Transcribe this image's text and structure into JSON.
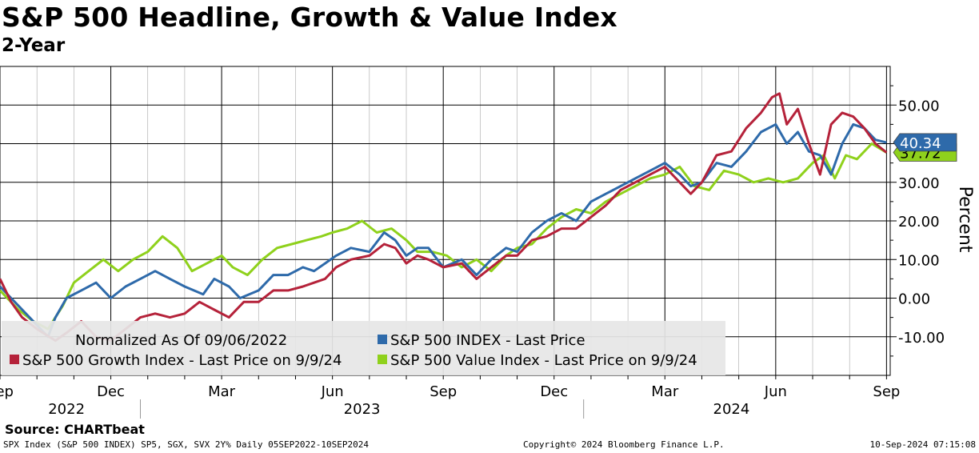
{
  "chart_data": {
    "type": "line",
    "title": "S&P 500 Headline, Growth & Value Index",
    "subtitle": "2-Year",
    "ylabel": "Percent",
    "ylim": [
      -20,
      60
    ],
    "yticks": [
      -10,
      0,
      10,
      20,
      30,
      40,
      50
    ],
    "ytick_labels": [
      "-10.00",
      "0.00",
      "10.00",
      "20.00",
      "30.00",
      "40.00",
      "50.00"
    ],
    "xlim": [
      0,
      24.1
    ],
    "xticks": [
      0,
      3,
      6,
      9,
      12,
      15,
      18,
      21,
      24
    ],
    "xtick_labels": [
      "Sep",
      "Dec",
      "Mar",
      "Jun",
      "Sep",
      "Dec",
      "Mar",
      "Jun",
      "Sep"
    ],
    "year_labels": [
      {
        "label": "2022",
        "at": 1.8
      },
      {
        "label": "2023",
        "at": 9.8
      },
      {
        "label": "2024",
        "at": 19.8
      }
    ],
    "year_boundaries": [
      3.8,
      15.8
    ],
    "legend_note": "Normalized As Of 09/06/2022",
    "series": [
      {
        "name": "S&P 500 INDEX - Last Price",
        "color": "#2e6aaa",
        "last_value": "40.34",
        "x": [
          0,
          0.5,
          0.9,
          1.3,
          1.5,
          1.8,
          2.2,
          2.6,
          3.0,
          3.4,
          3.8,
          4.2,
          4.6,
          5.0,
          5.5,
          5.8,
          6.2,
          6.5,
          7.0,
          7.4,
          7.8,
          8.2,
          8.5,
          8.8,
          9.1,
          9.5,
          10.0,
          10.4,
          10.7,
          11.0,
          11.3,
          11.6,
          12.0,
          12.5,
          12.9,
          13.3,
          13.7,
          14.0,
          14.4,
          14.8,
          15.2,
          15.6,
          16.0,
          16.4,
          16.8,
          17.2,
          17.6,
          18.0,
          18.4,
          18.7,
          19.0,
          19.4,
          19.8,
          20.2,
          20.6,
          21.0,
          21.3,
          21.6,
          21.9,
          22.2,
          22.5,
          22.8,
          23.1,
          23.4,
          23.7,
          24.0
        ],
        "y": [
          3,
          -2,
          -6,
          -10,
          -5,
          0,
          2,
          4,
          0,
          3,
          5,
          7,
          5,
          3,
          1,
          5,
          3,
          0,
          2,
          6,
          6,
          8,
          7,
          9,
          11,
          13,
          12,
          17,
          15,
          11,
          13,
          13,
          8,
          10,
          6,
          10,
          13,
          12,
          17,
          20,
          22,
          20,
          25,
          27,
          29,
          31,
          33,
          35,
          32,
          29,
          30,
          35,
          34,
          38,
          43,
          45,
          40,
          43,
          38,
          37,
          32,
          40,
          45,
          44,
          41,
          40.3
        ]
      },
      {
        "name": "S&P 500 Growth Index - Last Price on 9/9/24",
        "color": "#b5223a",
        "x": [
          0,
          0.3,
          0.6,
          1.0,
          1.5,
          1.8,
          2.2,
          2.6,
          3.0,
          3.4,
          3.8,
          4.2,
          4.6,
          5.0,
          5.4,
          5.8,
          6.2,
          6.6,
          7.0,
          7.4,
          7.8,
          8.2,
          8.5,
          8.8,
          9.1,
          9.5,
          10.0,
          10.4,
          10.7,
          11.0,
          11.3,
          11.6,
          12.0,
          12.5,
          12.9,
          13.3,
          13.7,
          14.0,
          14.4,
          14.8,
          15.2,
          15.6,
          16.0,
          16.4,
          16.8,
          17.2,
          17.6,
          18.0,
          18.4,
          18.7,
          19.0,
          19.4,
          19.8,
          20.2,
          20.6,
          20.9,
          21.1,
          21.3,
          21.6,
          21.9,
          22.2,
          22.5,
          22.8,
          23.1,
          23.4,
          23.7,
          24.0
        ],
        "y": [
          5,
          -1,
          -5,
          -8,
          -11,
          -9,
          -6,
          -10,
          -11,
          -8,
          -5,
          -4,
          -5,
          -4,
          -1,
          -3,
          -5,
          -1,
          -1,
          2,
          2,
          3,
          4,
          5,
          8,
          10,
          11,
          14,
          13,
          9,
          11,
          10,
          8,
          9,
          5,
          8,
          11,
          11,
          15,
          16,
          18,
          18,
          21,
          24,
          28,
          30,
          32,
          34,
          30,
          27,
          30,
          37,
          38,
          44,
          48,
          52,
          53,
          45,
          49,
          40,
          32,
          45,
          48,
          47,
          44,
          40,
          37.7
        ]
      },
      {
        "name": "S&P 500 Value Index - Last Price on 9/9/24",
        "color": "#8fd11c",
        "last_value": "37.72",
        "x": [
          0,
          0.5,
          0.9,
          1.3,
          1.7,
          2.0,
          2.4,
          2.8,
          3.2,
          3.6,
          4.0,
          4.4,
          4.8,
          5.2,
          5.6,
          6.0,
          6.3,
          6.7,
          7.1,
          7.5,
          7.9,
          8.3,
          8.7,
          9.0,
          9.4,
          9.8,
          10.2,
          10.6,
          11.0,
          11.3,
          11.7,
          12.1,
          12.5,
          12.9,
          13.3,
          13.7,
          14.0,
          14.4,
          14.8,
          15.2,
          15.6,
          16.0,
          16.4,
          16.8,
          17.2,
          17.6,
          18.0,
          18.4,
          18.8,
          19.2,
          19.6,
          20.0,
          20.4,
          20.8,
          21.2,
          21.6,
          22.0,
          22.3,
          22.6,
          22.9,
          23.2,
          23.6,
          24.0
        ],
        "y": [
          2,
          -3,
          -6,
          -8,
          -2,
          4,
          7,
          10,
          7,
          10,
          12,
          16,
          13,
          7,
          9,
          11,
          8,
          6,
          10,
          13,
          14,
          15,
          16,
          17,
          18,
          20,
          17,
          18,
          15,
          12,
          12,
          11,
          8,
          10,
          7,
          11,
          13,
          14,
          18,
          21,
          23,
          22,
          25,
          27,
          29,
          31,
          32,
          34,
          29,
          28,
          33,
          32,
          30,
          31,
          30,
          31,
          35,
          37,
          31,
          37,
          36,
          40,
          37.7
        ]
      }
    ]
  },
  "footer": {
    "source": "Source: CHARTbeat",
    "left": "SPX Index (S&P 500 INDEX) SP5, SGX, SVX 2Y%  Daily 05SEP2022-10SEP2024",
    "middle": "Copyright© 2024 Bloomberg Finance L.P.",
    "right": "10-Sep-2024 07:15:08"
  }
}
